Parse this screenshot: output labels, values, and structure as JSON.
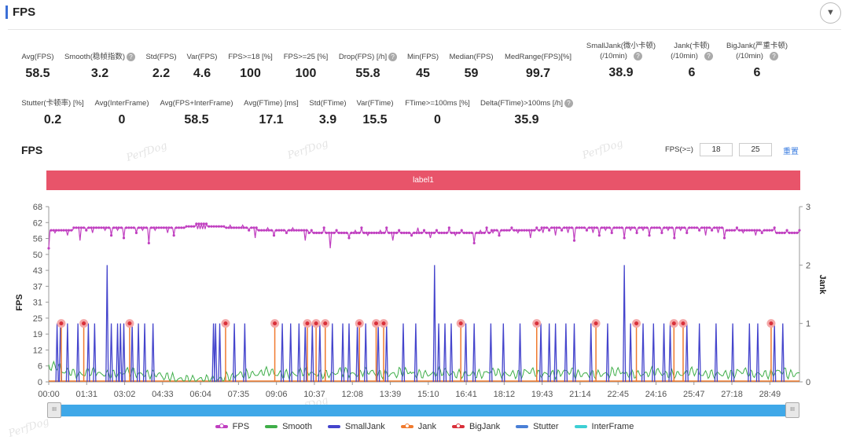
{
  "header": {
    "title": "FPS",
    "dropdown_icon": "▼"
  },
  "stats_row1": [
    {
      "label": "Avg(FPS)",
      "value": "58.5",
      "help": false
    },
    {
      "label": "Smooth(稳帧指数)",
      "value": "3.2",
      "help": true
    },
    {
      "label": "Std(FPS)",
      "value": "2.2",
      "help": false
    },
    {
      "label": "Var(FPS)",
      "value": "4.6",
      "help": false
    },
    {
      "label": "FPS>=18 [%]",
      "value": "100",
      "help": false
    },
    {
      "label": "FPS>=25 [%]",
      "value": "100",
      "help": false
    },
    {
      "label": "Drop(FPS) [/h]",
      "value": "55.8",
      "help": true
    },
    {
      "label": "Min(FPS)",
      "value": "45",
      "help": false
    },
    {
      "label": "Median(FPS)",
      "value": "59",
      "help": false
    },
    {
      "label": "MedRange(FPS)[%]",
      "value": "99.7",
      "help": false
    },
    {
      "label": "SmallJank(微小卡顿)",
      "label2": "(/10min)",
      "value": "38.9",
      "help": true
    },
    {
      "label": "Jank(卡顿)",
      "label2": "(/10min)",
      "value": "6",
      "help": true
    },
    {
      "label": "BigJank(严重卡顿)",
      "label2": "(/10min)",
      "value": "6",
      "help": true
    }
  ],
  "stats_row2": [
    {
      "label": "Stutter(卡顿率) [%]",
      "value": "0.2",
      "help": false
    },
    {
      "label": "Avg(InterFrame)",
      "value": "0",
      "help": false
    },
    {
      "label": "Avg(FPS+InterFrame)",
      "value": "58.5",
      "help": false
    },
    {
      "label": "Avg(FTime) [ms]",
      "value": "17.1",
      "help": false
    },
    {
      "label": "Std(FTime)",
      "value": "3.9",
      "help": false
    },
    {
      "label": "Var(FTime)",
      "value": "15.5",
      "help": false
    },
    {
      "label": "FTime>=100ms [%]",
      "value": "0",
      "help": false
    },
    {
      "label": "Delta(FTime)>100ms [/h]",
      "value": "35.9",
      "help": true
    }
  ],
  "chart_header": {
    "title": "FPS",
    "threshold_label": "FPS(>=)",
    "threshold1": "18",
    "threshold2": "25",
    "reset_label": "重置"
  },
  "label_bar": "label1",
  "watermark": "PerfDog",
  "colors": {
    "fps": "#c03fc0",
    "smooth": "#3fae49",
    "smalljank": "#4444cc",
    "jank": "#f07a2e",
    "bigjank": "#d9303a",
    "stutter": "#4a7fd6",
    "interframe": "#3dcfd4",
    "label": "#e8546a",
    "slider": "#3fa8e8"
  },
  "chart_data": {
    "type": "line",
    "ylabel_left": "FPS",
    "ylabel_right": "Jank",
    "yticks_left": [
      "0",
      "6",
      "12",
      "19",
      "25",
      "31",
      "37",
      "43",
      "50",
      "56",
      "62",
      "68"
    ],
    "ylim_left": [
      0,
      68.2
    ],
    "yticks_right": [
      "0",
      "1",
      "2",
      "3"
    ],
    "ylim_right": [
      0,
      3
    ],
    "xlim_seconds": [
      0,
      1800
    ],
    "xticks": [
      "00:00",
      "01:31",
      "03:02",
      "04:33",
      "06:04",
      "07:35",
      "09:06",
      "10:37",
      "12:08",
      "13:39",
      "15:10",
      "16:41",
      "18:12",
      "19:43",
      "21:14",
      "22:45",
      "24:16",
      "25:47",
      "27:18",
      "28:49"
    ],
    "legend": [
      "FPS",
      "Smooth",
      "SmallJank",
      "Jank",
      "BigJank",
      "Stutter",
      "InterFrame"
    ],
    "fps_interval_seconds": 15,
    "fps": [
      52,
      58,
      59,
      57,
      60,
      55,
      59,
      58,
      60,
      59,
      57,
      59,
      56,
      60,
      58,
      59,
      54,
      59,
      60,
      58,
      57,
      60,
      61,
      61,
      60,
      61,
      61,
      60,
      61,
      61,
      60,
      61,
      59,
      56,
      59,
      60,
      57,
      59,
      58,
      60,
      59,
      55,
      59,
      58,
      60,
      52,
      59,
      58,
      56,
      59,
      60,
      57,
      58,
      59,
      60,
      55,
      59,
      58,
      57,
      60,
      59,
      56,
      59,
      58,
      60,
      57,
      59,
      58,
      54,
      59,
      60,
      58,
      57,
      59,
      60,
      58,
      59,
      56,
      60,
      58,
      59,
      57,
      59,
      58,
      55,
      60,
      59,
      58,
      57,
      59,
      58,
      60,
      56,
      59,
      58,
      59,
      57,
      60,
      58,
      59,
      56,
      59,
      58,
      60,
      59,
      57,
      59,
      58,
      56,
      59,
      60,
      58,
      59,
      57,
      58,
      59,
      60,
      58,
      59,
      58,
      59
    ],
    "smooth_interval_seconds": 30,
    "smooth": [
      6,
      4,
      3,
      4,
      3,
      3,
      4,
      3,
      3,
      2,
      1,
      1,
      1,
      1,
      2,
      3,
      3,
      4,
      3,
      3,
      4,
      3,
      3,
      4,
      3,
      4,
      3,
      3,
      4,
      3,
      3,
      4,
      3,
      3,
      3,
      4,
      3,
      3,
      4,
      3,
      3,
      4,
      3,
      3,
      3,
      4,
      3,
      3,
      4,
      3,
      3,
      4,
      3,
      3,
      3,
      4,
      3,
      3,
      4,
      3,
      3
    ],
    "smalljank": [
      [
        20,
        1
      ],
      [
        28,
        1
      ],
      [
        45,
        1
      ],
      [
        70,
        1
      ],
      [
        95,
        1
      ],
      [
        110,
        1
      ],
      [
        140,
        2
      ],
      [
        150,
        1
      ],
      [
        165,
        1
      ],
      [
        172,
        1
      ],
      [
        180,
        1
      ],
      [
        200,
        1
      ],
      [
        215,
        1
      ],
      [
        230,
        1
      ],
      [
        250,
        1
      ],
      [
        395,
        1
      ],
      [
        400,
        1
      ],
      [
        410,
        1
      ],
      [
        445,
        1
      ],
      [
        470,
        1
      ],
      [
        560,
        1
      ],
      [
        580,
        1
      ],
      [
        600,
        1
      ],
      [
        615,
        1
      ],
      [
        632,
        1
      ],
      [
        650,
        1
      ],
      [
        680,
        1
      ],
      [
        705,
        1
      ],
      [
        720,
        1
      ],
      [
        740,
        1
      ],
      [
        760,
        1
      ],
      [
        790,
        1
      ],
      [
        810,
        1
      ],
      [
        850,
        1
      ],
      [
        880,
        1
      ],
      [
        925,
        2
      ],
      [
        935,
        1
      ],
      [
        950,
        1
      ],
      [
        965,
        1
      ],
      [
        1000,
        1
      ],
      [
        1020,
        1
      ],
      [
        1060,
        1
      ],
      [
        1090,
        1
      ],
      [
        1130,
        1
      ],
      [
        1180,
        1
      ],
      [
        1200,
        1
      ],
      [
        1215,
        1
      ],
      [
        1240,
        1
      ],
      [
        1260,
        1
      ],
      [
        1300,
        1
      ],
      [
        1340,
        1
      ],
      [
        1380,
        2
      ],
      [
        1395,
        1
      ],
      [
        1425,
        1
      ],
      [
        1450,
        1
      ],
      [
        1475,
        1
      ],
      [
        1490,
        1
      ],
      [
        1530,
        1
      ],
      [
        1560,
        1
      ],
      [
        1600,
        1
      ],
      [
        1640,
        1
      ],
      [
        1680,
        1
      ],
      [
        1700,
        1
      ],
      [
        1740,
        1
      ],
      [
        1760,
        1
      ]
    ],
    "bigjank_seconds": [
      30,
      84,
      194,
      424,
      542,
      620,
      641,
      663,
      745,
      785,
      803,
      988,
      1170,
      1312,
      1409,
      1499,
      1521,
      1732
    ],
    "bigjank_value": 1
  },
  "slider": {
    "start_percent": 0,
    "end_percent": 100
  }
}
